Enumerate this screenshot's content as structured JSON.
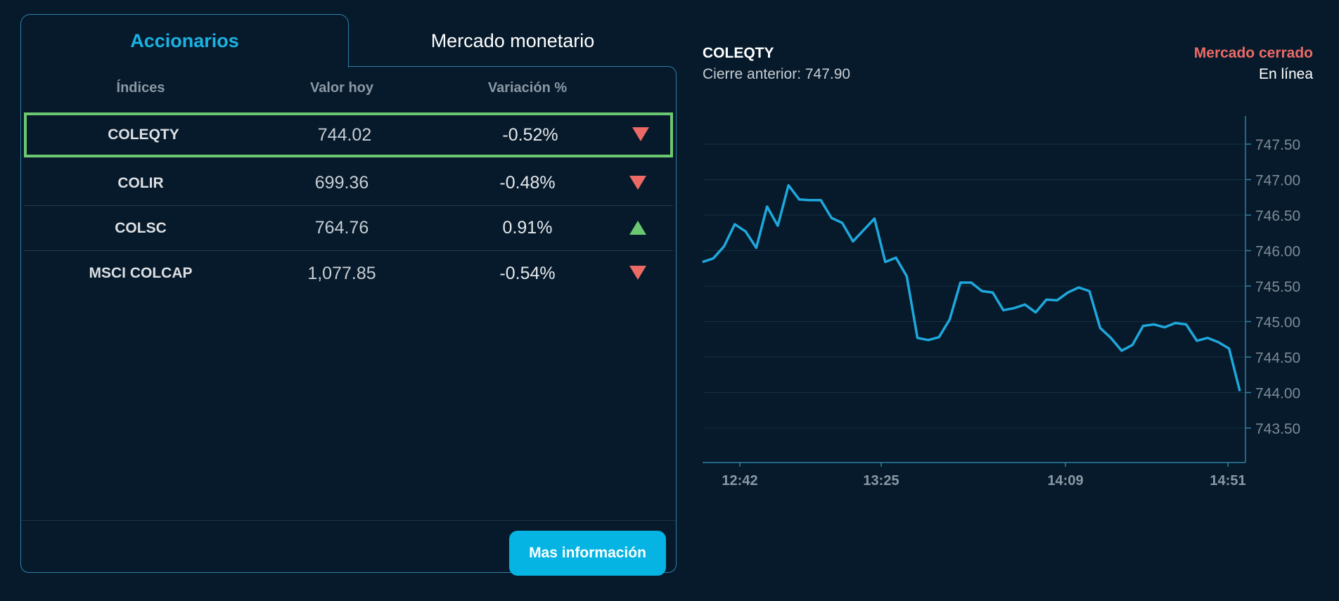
{
  "tabs": [
    {
      "label": "Accionarios",
      "active": true
    },
    {
      "label": "Mercado monetario",
      "active": false
    }
  ],
  "table": {
    "headers": [
      "Índices",
      "Valor hoy",
      "Variación %"
    ],
    "rows": [
      {
        "name": "COLEQTY",
        "value": "744.02",
        "variation": "-0.52%",
        "direction": "down",
        "selected": true
      },
      {
        "name": "COLIR",
        "value": "699.36",
        "variation": "-0.48%",
        "direction": "down",
        "selected": false
      },
      {
        "name": "COLSC",
        "value": "764.76",
        "variation": "0.91%",
        "direction": "up",
        "selected": false
      },
      {
        "name": "MSCI COLCAP",
        "value": "1,077.85",
        "variation": "-0.54%",
        "direction": "down",
        "selected": false
      }
    ]
  },
  "more_button": {
    "label": "Mas información"
  },
  "chart_header": {
    "title": "COLEQTY",
    "previous_close": "Cierre anterior: 747.90",
    "market_status": "Mercado cerrado",
    "connection_status": "En línea"
  },
  "colors": {
    "background": "#061a2b",
    "accent": "#1bb2e3",
    "button": "#05b4e3",
    "up": "#6cc870",
    "down": "#ec6a66",
    "line": "#1ea8dc",
    "border": "#2f7fa3"
  },
  "chart_data": {
    "type": "line",
    "title": "COLEQTY",
    "xlabel": "",
    "ylabel": "",
    "ylim": [
      743.1,
      747.9
    ],
    "y_ticks": [
      "747.50",
      "747.00",
      "746.50",
      "746.00",
      "745.50",
      "745.00",
      "744.50",
      "744.00",
      "743.50"
    ],
    "x_ticks": [
      "12:42",
      "13:25",
      "14:09",
      "14:51"
    ],
    "grid": true,
    "y_axis_position": "right",
    "series": [
      {
        "name": "COLEQTY",
        "values": [
          745.84,
          745.89,
          746.06,
          746.37,
          746.27,
          746.04,
          746.62,
          746.35,
          746.92,
          746.72,
          746.71,
          746.71,
          746.46,
          746.39,
          746.13,
          746.29,
          746.45,
          745.84,
          745.9,
          745.64,
          744.77,
          744.74,
          744.78,
          745.03,
          745.55,
          745.55,
          745.43,
          745.41,
          745.16,
          745.19,
          745.24,
          745.13,
          745.31,
          745.3,
          745.41,
          745.48,
          745.43,
          744.91,
          744.77,
          744.59,
          744.67,
          744.94,
          744.96,
          744.92,
          744.98,
          744.96,
          744.73,
          744.77,
          744.71,
          744.62,
          744.02
        ]
      }
    ]
  }
}
